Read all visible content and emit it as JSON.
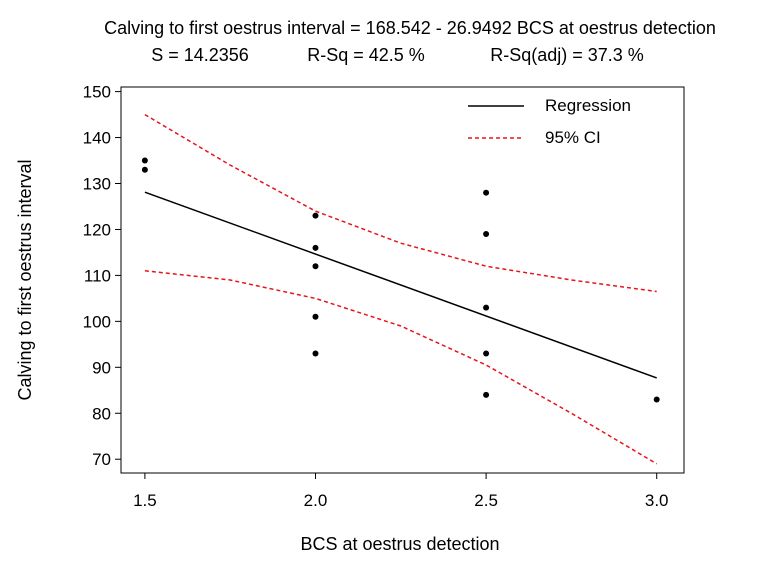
{
  "chart_data": {
    "type": "scatter",
    "title": "Calving to first oestrus interval = 168.542 - 26.9492 BCS at oestrus detection",
    "stats": {
      "s": "S = 14.2356",
      "rsq": "R-Sq = 42.5 %",
      "rsq_adj": "R-Sq(adj) = 37.3 %"
    },
    "xlabel": "BCS at oestrus detection",
    "ylabel": "Calving to first oestrus interval",
    "xlim": [
      1.43,
      3.08
    ],
    "ylim": [
      67,
      151
    ],
    "x_ticks": [
      1.5,
      2.0,
      2.5,
      3.0
    ],
    "x_tick_labels": [
      "1.5",
      "2.0",
      "2.5",
      "3.0"
    ],
    "y_ticks": [
      70,
      80,
      90,
      100,
      110,
      120,
      130,
      140,
      150
    ],
    "y_tick_labels": [
      "70",
      "80",
      "90",
      "100",
      "110",
      "120",
      "130",
      "140",
      "150"
    ],
    "points": [
      {
        "x": 1.5,
        "y": 135
      },
      {
        "x": 1.5,
        "y": 133
      },
      {
        "x": 2.0,
        "y": 123
      },
      {
        "x": 2.0,
        "y": 116
      },
      {
        "x": 2.0,
        "y": 112
      },
      {
        "x": 2.0,
        "y": 101
      },
      {
        "x": 2.0,
        "y": 93
      },
      {
        "x": 2.5,
        "y": 128
      },
      {
        "x": 2.5,
        "y": 119
      },
      {
        "x": 2.5,
        "y": 103
      },
      {
        "x": 2.5,
        "y": 93
      },
      {
        "x": 2.5,
        "y": 84
      },
      {
        "x": 3.0,
        "y": 83
      }
    ],
    "regression": {
      "intercept": 168.542,
      "slope": -26.9492,
      "x_range": [
        1.5,
        3.0
      ]
    },
    "ci_upper": [
      {
        "x": 1.5,
        "y": 145
      },
      {
        "x": 1.75,
        "y": 134
      },
      {
        "x": 2.0,
        "y": 124
      },
      {
        "x": 2.25,
        "y": 117
      },
      {
        "x": 2.5,
        "y": 112
      },
      {
        "x": 2.75,
        "y": 109
      },
      {
        "x": 3.0,
        "y": 106.5
      }
    ],
    "ci_lower": [
      {
        "x": 1.5,
        "y": 111
      },
      {
        "x": 1.75,
        "y": 109
      },
      {
        "x": 2.0,
        "y": 105
      },
      {
        "x": 2.25,
        "y": 99
      },
      {
        "x": 2.5,
        "y": 90.5
      },
      {
        "x": 2.75,
        "y": 80
      },
      {
        "x": 3.0,
        "y": 69
      }
    ],
    "legend": [
      {
        "name": "Regression",
        "color": "#000000",
        "style": "solid"
      },
      {
        "name": "95% CI",
        "color": "#e8141b",
        "style": "dashed"
      }
    ],
    "legend_placement": "top-right",
    "grid": false,
    "colors": {
      "points": "#000000",
      "regression": "#000000",
      "ci": "#e8141b"
    }
  }
}
